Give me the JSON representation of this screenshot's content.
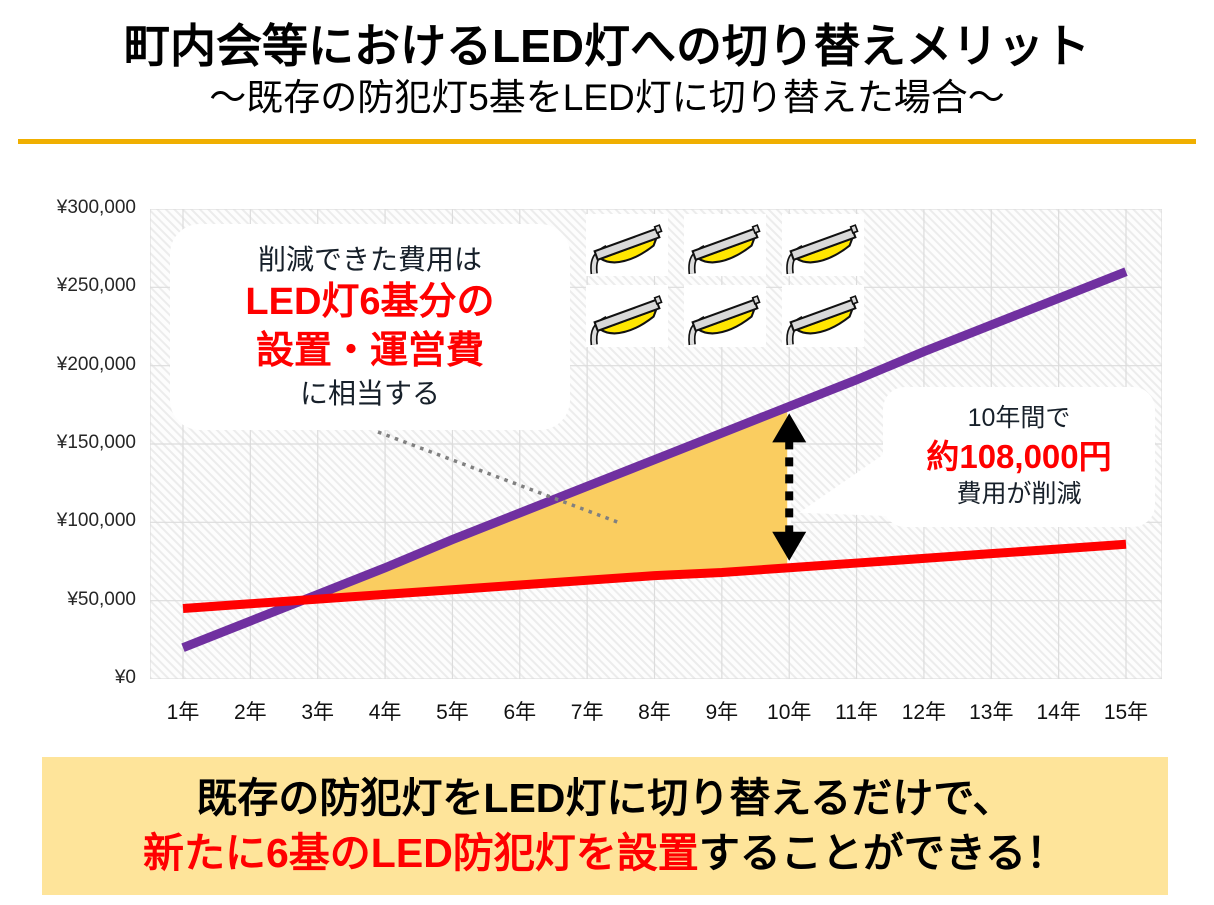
{
  "header": {
    "title": "町内会等におけるLED灯への切り替えメリット",
    "subtitle": "～既存の防犯灯5基をLED灯に切り替えた場合～"
  },
  "chart_data": {
    "type": "line",
    "categories": [
      "1年",
      "2年",
      "3年",
      "4年",
      "5年",
      "6年",
      "7年",
      "8年",
      "9年",
      "10年",
      "11年",
      "12年",
      "13年",
      "14年",
      "15年"
    ],
    "y_ticks": [
      "¥300,000",
      "¥250,000",
      "¥200,000",
      "¥150,000",
      "¥100,000",
      "¥50,000",
      "¥0"
    ],
    "ylim": [
      0,
      300000
    ],
    "grid": true,
    "series": [
      {
        "name": "purple-line",
        "color": "#7030A0",
        "values": [
          20000,
          37000,
          54000,
          71000,
          89000,
          106000,
          123000,
          140000,
          157000,
          174000,
          191000,
          209000,
          226000,
          243000,
          260000
        ]
      },
      {
        "name": "red-line",
        "color": "#FF0000",
        "values": [
          45000,
          48000,
          51000,
          54000,
          57000,
          60000,
          63000,
          66000,
          68000,
          71000,
          74000,
          77000,
          80000,
          83000,
          86000
        ]
      }
    ],
    "shaded_area": {
      "color": "#FACD60",
      "between": "series",
      "from": "crossover",
      "to_category": "10年"
    },
    "annotations": {
      "arrow_year_index": 9
    }
  },
  "callout_left": {
    "line1": "削減できた費用は",
    "line2": "LED灯6基分の",
    "line3": "設置・運営費",
    "line4": "に相当する"
  },
  "callout_right": {
    "line1": "10年間で",
    "line2": "約108,000円",
    "line3": "費用が削減"
  },
  "lamp_icons": {
    "count": 6
  },
  "banner": {
    "line1": "既存の防犯灯をLED灯に切り替えるだけで、",
    "line2_red": "新たに6基のLED防犯灯を設置",
    "line2_black": "することができる！"
  },
  "colors": {
    "accent_gold": "#F0AF00",
    "banner_bg": "#FEE49A",
    "area_fill": "#FACD60",
    "purple_line": "#7030A0",
    "red_line": "#FF0000",
    "grid": "#DCDCDC"
  }
}
